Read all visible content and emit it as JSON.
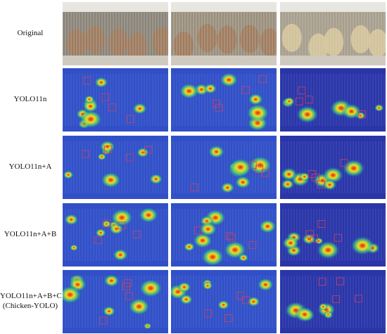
{
  "rows": [
    {
      "label": "Original"
    },
    {
      "label": "YOLO11n"
    },
    {
      "label": "YOLO11n+A"
    },
    {
      "label": "YOLO11n+A+B"
    },
    {
      "label": "YOLO11n+A+B+C",
      "sublabel": "(Chicken-YOLO)"
    }
  ]
}
